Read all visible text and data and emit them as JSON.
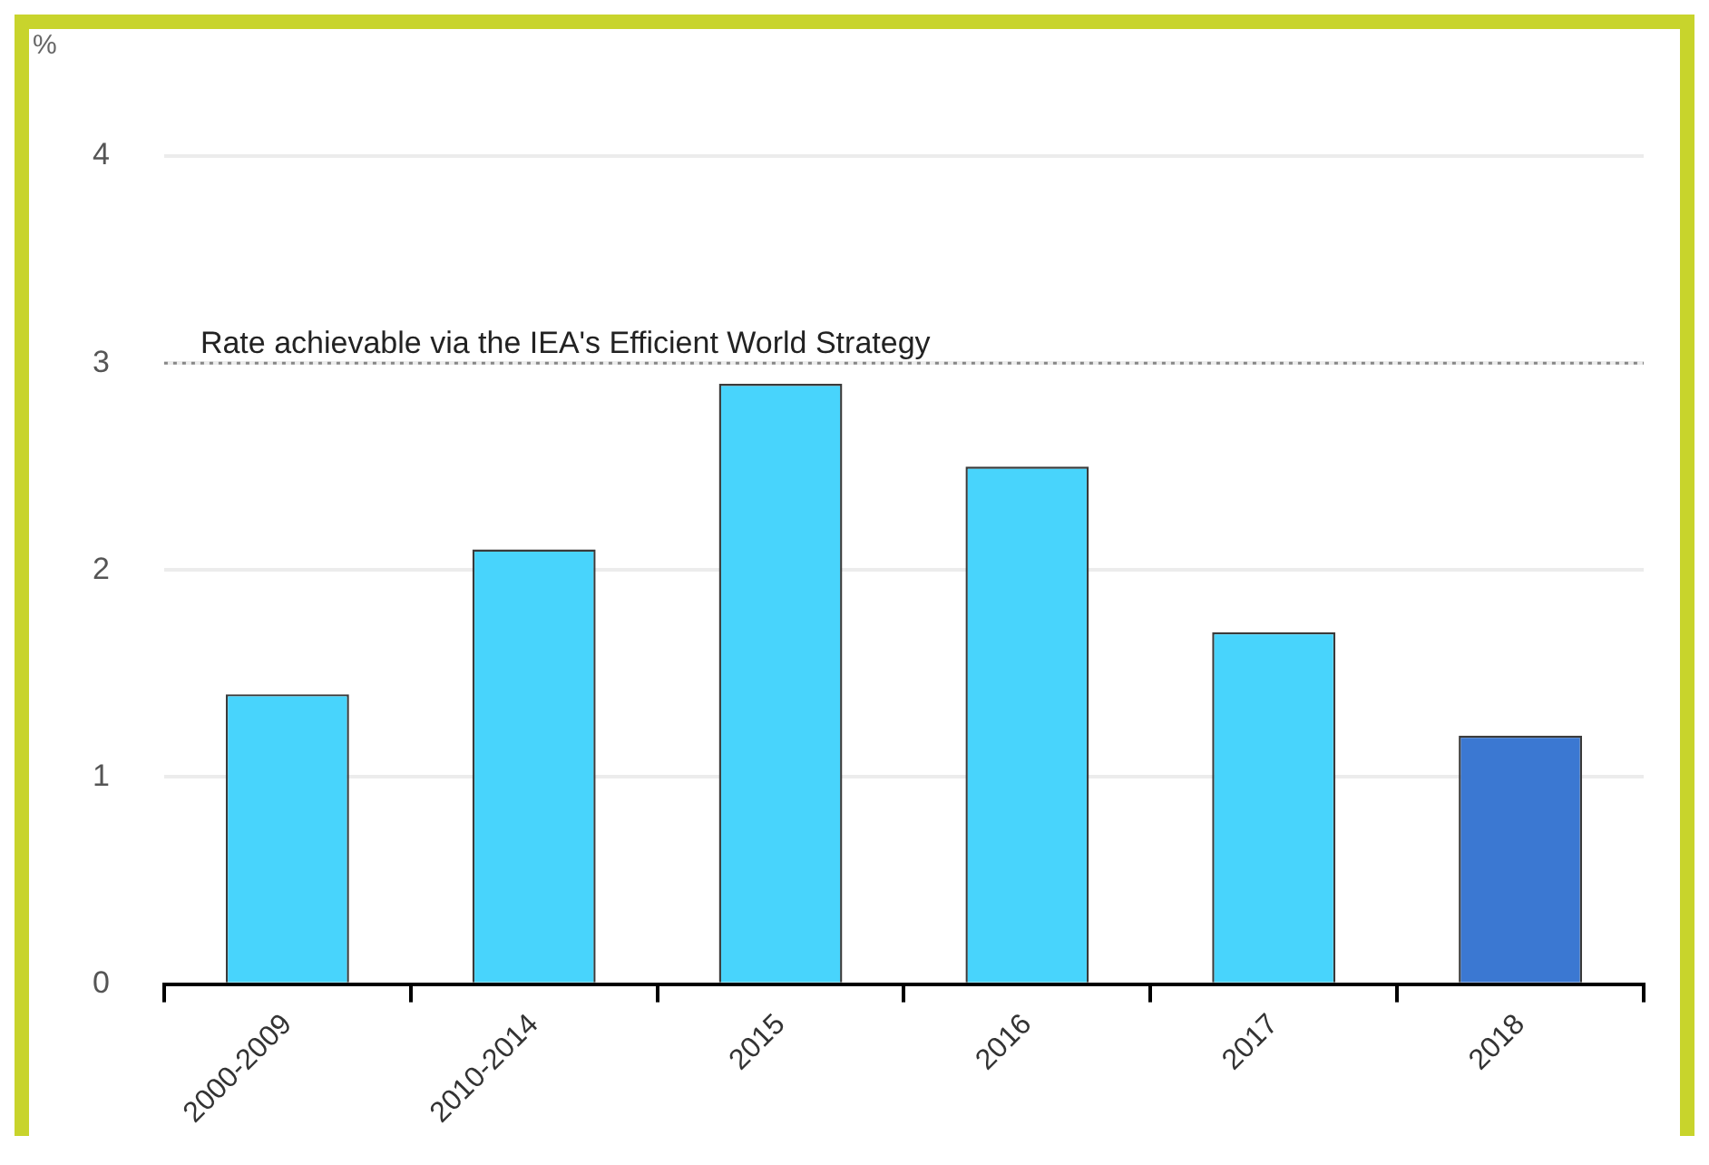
{
  "chart_data": {
    "type": "bar",
    "ylabel": "%",
    "categories": [
      "2000-2009",
      "2010-2014",
      "2015",
      "2016",
      "2017",
      "2018"
    ],
    "values": [
      1.4,
      2.1,
      2.9,
      2.5,
      1.7,
      1.2
    ],
    "colors": [
      "#48d4fc",
      "#48d4fc",
      "#48d4fc",
      "#48d4fc",
      "#48d4fc",
      "#3b78d2"
    ],
    "ylim": [
      0,
      4
    ],
    "yticks": [
      0,
      1,
      2,
      3,
      4
    ],
    "grid": "y",
    "legend": false,
    "ref_lines": [
      {
        "axis": "y",
        "value": 3,
        "label": "Rate achievable via the IEA's Efficient World Strategy",
        "color": "#888888",
        "line_style": "dotted"
      }
    ]
  }
}
